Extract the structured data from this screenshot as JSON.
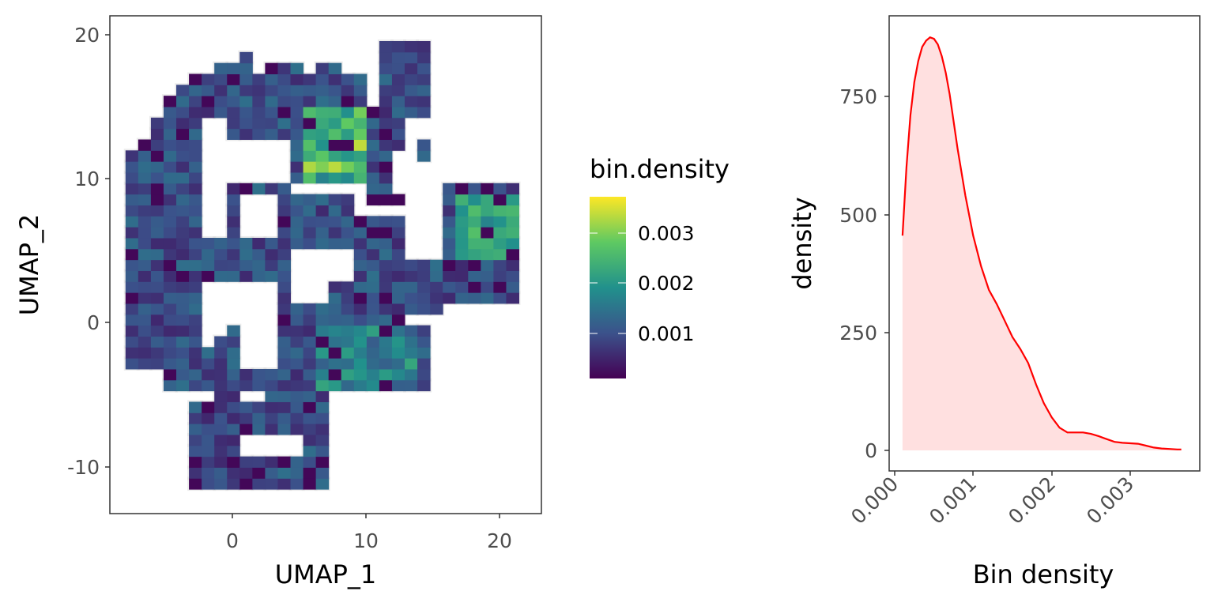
{
  "chart_data": [
    {
      "type": "heatmap",
      "xlabel": "UMAP_1",
      "ylabel": "UMAP_2",
      "xlim": [
        -9.2,
        23.2
      ],
      "ylim": [
        -13.4,
        21.0
      ],
      "xticks": [
        0,
        10,
        20
      ],
      "xtick_labels": [
        "0",
        "10",
        "20"
      ],
      "yticks": [
        -10,
        0,
        10,
        20
      ],
      "ytick_labels": [
        "-10",
        "0",
        "10",
        "20"
      ],
      "bin_size": [
        0.95,
        0.76
      ],
      "x_origin": -8.0,
      "y_origin": -11.6,
      "colorbar": {
        "title": "bin.density",
        "range": [
          0.0001,
          0.0037
        ],
        "ticks": [
          0.001,
          0.002,
          0.003
        ],
        "tick_labels": [
          "0.001",
          "0.002",
          "0.003"
        ],
        "colors": [
          "#440154",
          "#3b528b",
          "#21918c",
          "#5ec962",
          "#fde725"
        ]
      },
      "background_points_color": "#cccccc",
      "grid_rows": [
        "................................................................",
        "........................................",
        ".......................................",
        "......................................................",
        "......................................................",
        "..................."
      ],
      "cells": [
        [
          1,
          0.0004
        ],
        [
          1,
          0.0009
        ],
        [
          1,
          0.0012
        ],
        [
          1,
          0.0005
        ],
        [
          1,
          0.0011
        ],
        [
          1,
          0.0007
        ],
        [
          1,
          0.0013
        ]
      ]
    },
    {
      "type": "area",
      "xlabel": "Bin density",
      "ylabel": "density",
      "xlim": [
        -5e-05,
        0.0039
      ],
      "ylim": [
        -45,
        910
      ],
      "xticks": [
        0.0,
        0.001,
        0.002,
        0.003
      ],
      "xtick_labels": [
        "0.000",
        "0.001",
        "0.002",
        "0.003"
      ],
      "yticks": [
        0,
        250,
        500,
        750
      ],
      "ytick_labels": [
        "0",
        "250",
        "500",
        "750"
      ],
      "line_color": "#ff0000",
      "fill_color": "#ffe0e0",
      "x": [
        0.0001,
        0.00015,
        0.0002,
        0.00025,
        0.0003,
        0.00035,
        0.0004,
        0.00045,
        0.0005,
        0.00055,
        0.0006,
        0.00065,
        0.0007,
        0.0008,
        0.0009,
        0.001,
        0.0011,
        0.0012,
        0.0013,
        0.0014,
        0.0015,
        0.0016,
        0.0017,
        0.0018,
        0.0019,
        0.002,
        0.0021,
        0.0022,
        0.0023,
        0.0024,
        0.0025,
        0.0026,
        0.0027,
        0.0028,
        0.0029,
        0.003,
        0.0031,
        0.0032,
        0.0033,
        0.0034,
        0.0035,
        0.0036,
        0.00365
      ],
      "y": [
        455,
        600,
        710,
        780,
        825,
        855,
        868,
        875,
        872,
        860,
        835,
        800,
        755,
        640,
        540,
        455,
        390,
        340,
        310,
        275,
        240,
        215,
        185,
        140,
        100,
        70,
        48,
        38,
        38,
        38,
        35,
        30,
        24,
        18,
        16,
        15,
        14,
        10,
        6,
        4,
        3,
        2,
        2
      ]
    }
  ],
  "panels": {
    "umap": {
      "xlabel": "UMAP_1",
      "ylabel": "UMAP_2",
      "xtick_labels": [
        "0",
        "10",
        "20"
      ],
      "ytick_labels": [
        "-10",
        "0",
        "10",
        "20"
      ]
    },
    "legend": {
      "title": "bin.density",
      "tick_labels": [
        "0.001",
        "0.002",
        "0.003"
      ]
    },
    "density": {
      "xlabel": "Bin density",
      "ylabel": "density",
      "xtick_labels": [
        "0.000",
        "0.001",
        "0.002",
        "0.003"
      ],
      "ytick_labels": [
        "0",
        "250",
        "500",
        "750"
      ]
    }
  }
}
